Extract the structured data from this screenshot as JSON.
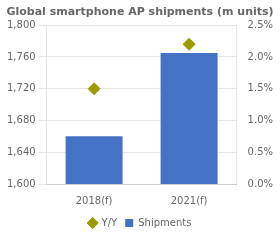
{
  "chart_data": {
    "type": "bar",
    "title": "Global smartphone AP shipments (m units)",
    "categories": [
      "2018(f)",
      "2021(f)"
    ],
    "series": [
      {
        "name": "Shipments",
        "type": "bar",
        "color": "#4472C4",
        "values": [
          1660,
          1765
        ]
      },
      {
        "name": "Y/Y",
        "type": "scatter",
        "color": "#9B9B00",
        "marker": "diamond",
        "axis": "y2",
        "values": [
          1.5,
          2.2
        ]
      }
    ],
    "ylim": [
      1600,
      1800
    ],
    "yticks": [
      {
        "value": 1600,
        "label": "1,600"
      },
      {
        "value": 1640,
        "label": "1,640"
      },
      {
        "value": 1680,
        "label": "1,680"
      },
      {
        "value": 1720,
        "label": "1,720"
      },
      {
        "value": 1760,
        "label": "1,760"
      },
      {
        "value": 1800,
        "label": "1,800"
      }
    ],
    "y2lim": [
      0.0,
      2.5
    ],
    "y2ticks": [
      {
        "value": 0.0,
        "label": "0.0%"
      },
      {
        "value": 0.5,
        "label": "0.5%"
      },
      {
        "value": 1.0,
        "label": "1.0%"
      },
      {
        "value": 1.5,
        "label": "1.5%"
      },
      {
        "value": 2.0,
        "label": "2.0%"
      },
      {
        "value": 2.5,
        "label": "2.5%"
      }
    ],
    "grid": true,
    "legend": "bottom"
  }
}
